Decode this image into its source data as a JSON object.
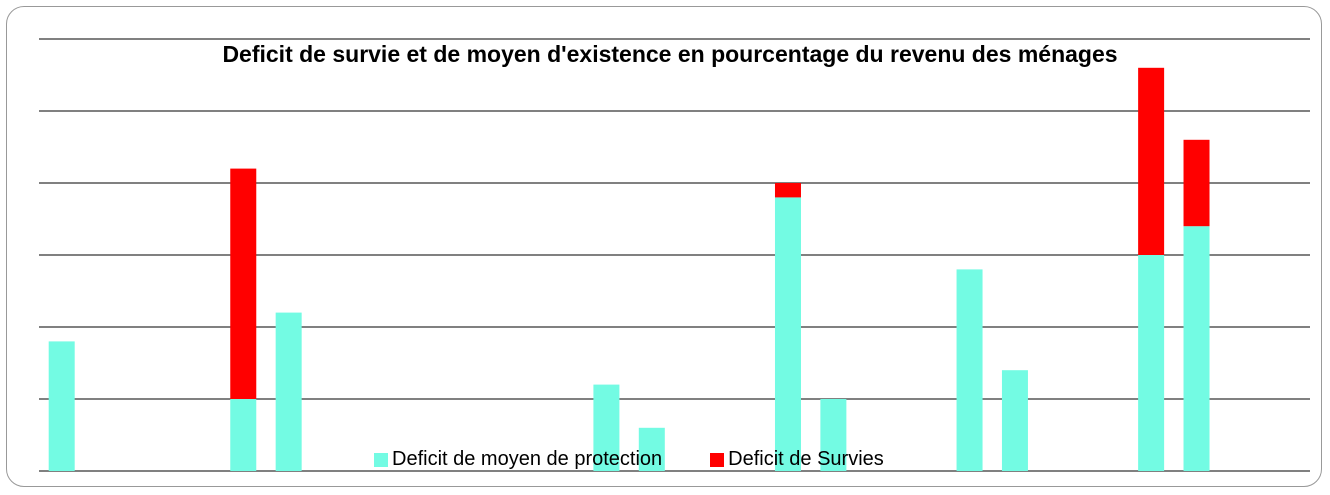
{
  "chart_data": {
    "type": "stacked-bar",
    "title": "Deficit de survie et de moyen d'existence en pourcentage du revenu des ménages",
    "categories": [
      null,
      null,
      null,
      null,
      null,
      null,
      null,
      null,
      null,
      null,
      null,
      null,
      null,
      null,
      null,
      null,
      null,
      null,
      null,
      null,
      null,
      null,
      null,
      null,
      null,
      null,
      null,
      null
    ],
    "series": [
      {
        "name": "Deficit de moyen de protection",
        "color": "#73fbe3",
        "values": [
          1.8,
          null,
          null,
          null,
          1.0,
          2.2,
          null,
          null,
          null,
          null,
          null,
          null,
          1.2,
          0.6,
          null,
          null,
          3.8,
          1.0,
          null,
          null,
          2.8,
          1.4,
          null,
          null,
          3.0,
          3.4,
          null,
          null
        ]
      },
      {
        "name": "Deficit de Survies",
        "color": "#ff0000",
        "values": [
          null,
          null,
          null,
          null,
          3.2,
          null,
          null,
          null,
          null,
          null,
          null,
          null,
          null,
          null,
          null,
          null,
          0.2,
          null,
          null,
          null,
          null,
          null,
          null,
          null,
          2.6,
          1.2,
          null,
          null
        ]
      }
    ],
    "ylim": [
      0,
      6
    ],
    "yticks": [
      0,
      1,
      2,
      3,
      4,
      5,
      6
    ],
    "grid": true
  }
}
